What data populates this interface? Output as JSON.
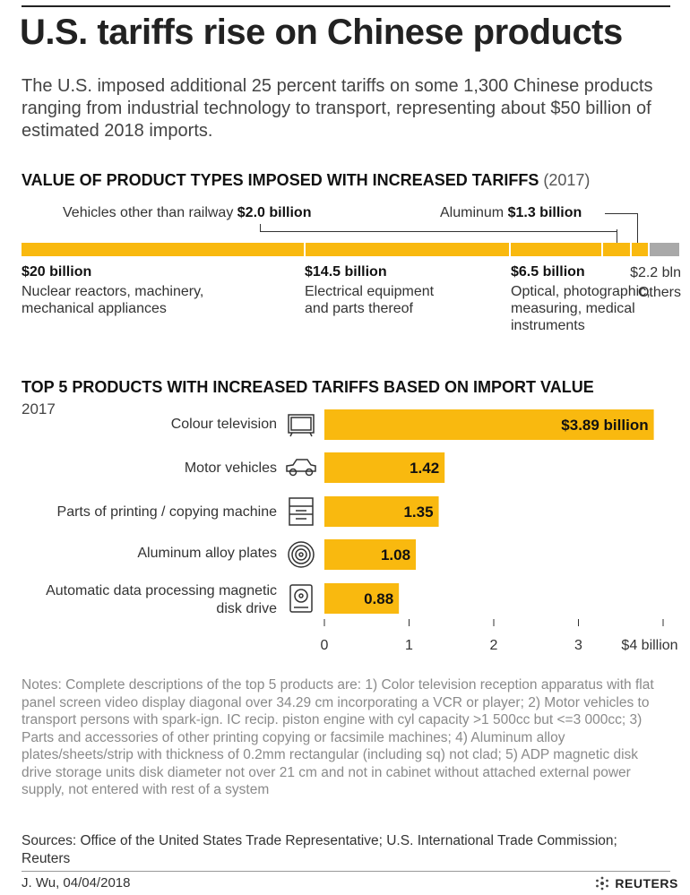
{
  "header": {
    "title": "U.S. tariffs rise on Chinese products",
    "intro": "The U.S. imposed additional 25 percent tariffs on some 1,300 Chinese products ranging from industrial technology to transport, representing about $50 billion of estimated 2018 imports."
  },
  "colors": {
    "accent": "#f9b90f",
    "others": "#a9a9a9",
    "text": "#222222"
  },
  "section1": {
    "title": "VALUE OF PRODUCT TYPES IMPOSED WITH INCREASED TARIFFS",
    "year": "(2017)",
    "callout_vehicles_label": "Vehicles other than railway",
    "callout_vehicles_value": "$2.0 billion",
    "callout_aluminum_label": "Aluminum",
    "callout_aluminum_value": "$1.3 billion",
    "seg1_value": "$20 billion",
    "seg1_desc": "Nuclear reactors, machinery, mechanical appliances",
    "seg2_value": "$14.5 billion",
    "seg2_desc": "Electrical equipment and parts thereof",
    "seg3_value": "$6.5 billion",
    "seg3_desc": "Optical, photographic, measuring, medical instruments",
    "seg4_value": "$2.2 bln",
    "seg4_desc": "Others"
  },
  "section2": {
    "title": "TOP 5 PRODUCTS WITH INCREASED TARIFFS BASED ON IMPORT VALUE",
    "year": "2017"
  },
  "chart_data": [
    {
      "type": "bar",
      "orientation": "horizontal-stacked",
      "title": "VALUE OF PRODUCT TYPES IMPOSED WITH INCREASED TARIFFS (2017)",
      "unit": "billion USD",
      "categories": [
        "Nuclear reactors, machinery, mechanical appliances",
        "Electrical equipment and parts thereof",
        "Optical, photographic, measuring, medical instruments",
        "Vehicles other than railway",
        "Aluminum",
        "Others"
      ],
      "values": [
        20,
        14.5,
        6.5,
        2.0,
        1.3,
        2.2
      ]
    },
    {
      "type": "bar",
      "orientation": "horizontal",
      "title": "TOP 5 PRODUCTS WITH INCREASED TARIFFS BASED ON IMPORT VALUE",
      "subtitle": "2017",
      "categories": [
        "Colour television",
        "Motor vehicles",
        "Parts of printing / copying machine",
        "Aluminum alloy plates",
        "Automatic data processing magnetic disk drive"
      ],
      "category_icons": [
        "television-icon",
        "car-icon",
        "printer-icon",
        "coil-icon",
        "disk-drive-icon"
      ],
      "values": [
        3.89,
        1.42,
        1.35,
        1.08,
        0.88
      ],
      "data_labels": [
        "$3.89 billion",
        "1.42",
        "1.35",
        "1.08",
        "0.88"
      ],
      "xlim": [
        0,
        4
      ],
      "xticks": [
        0,
        1,
        2,
        3,
        4
      ],
      "xtick_labels": [
        "0",
        "1",
        "2",
        "3",
        "$4 billion"
      ]
    }
  ],
  "notes": "Notes: Complete descriptions of the top 5 products are: 1) Color television reception apparatus with flat panel screen video display diagonal over 34.29 cm incorporating a VCR or player; 2) Motor vehicles to transport persons with spark-ign. IC recip. piston engine with cyl capacity >1 500cc but <=3 000cc; 3) Parts and accessories of other printing copying or facsimile machines; 4) Aluminum alloy plates/sheets/strip with thickness of 0.2mm rectangular (including sq) not clad; 5) ADP magnetic disk drive storage units disk diameter not over 21 cm and not in cabinet without attached external power supply,  not entered with rest of a system",
  "sources": "Sources: Office of the United States Trade Representative; U.S. International Trade Commission; Reuters",
  "footer": {
    "credit": "J. Wu,  04/04/2018",
    "brand": "REUTERS"
  }
}
